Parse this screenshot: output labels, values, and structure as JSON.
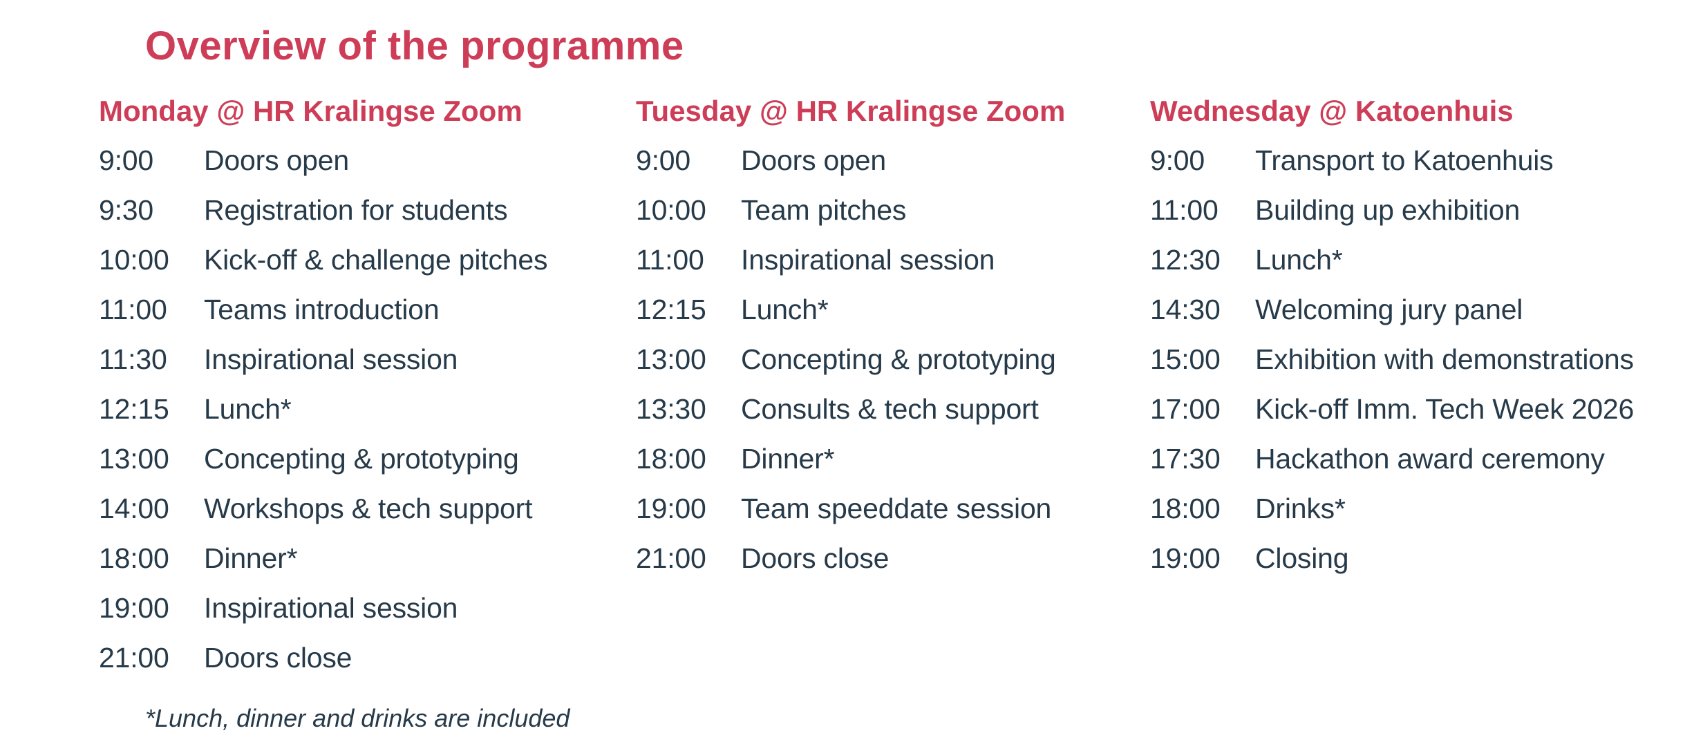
{
  "page": {
    "title": "Overview of the programme",
    "footnote": "*Lunch, dinner and drinks are included",
    "accent_color": "#ce3d57",
    "text_color": "#263a49",
    "background_color": "#ffffff"
  },
  "columns": [
    {
      "id": "monday",
      "header": "Monday @ HR Kralingse Zoom",
      "rows": [
        {
          "time": "9:00",
          "activity": "Doors open"
        },
        {
          "time": "9:30",
          "activity": "Registration for students"
        },
        {
          "time": "10:00",
          "activity": "Kick-off & challenge pitches"
        },
        {
          "time": "11:00",
          "activity": "Teams introduction"
        },
        {
          "time": "11:30",
          "activity": "Inspirational session"
        },
        {
          "time": "12:15",
          "activity": "Lunch*"
        },
        {
          "time": "13:00",
          "activity": "Concepting & prototyping"
        },
        {
          "time": "14:00",
          "activity": "Workshops & tech support"
        },
        {
          "time": "18:00",
          "activity": "Dinner*"
        },
        {
          "time": "19:00",
          "activity": "Inspirational session"
        },
        {
          "time": "21:00",
          "activity": "Doors close"
        }
      ]
    },
    {
      "id": "tuesday",
      "header": "Tuesday @ HR Kralingse Zoom",
      "rows": [
        {
          "time": "9:00",
          "activity": "Doors open"
        },
        {
          "time": "10:00",
          "activity": "Team pitches"
        },
        {
          "time": "11:00",
          "activity": "Inspirational session"
        },
        {
          "time": "12:15",
          "activity": "Lunch*"
        },
        {
          "time": "13:00",
          "activity": "Concepting & prototyping"
        },
        {
          "time": "13:30",
          "activity": "Consults & tech support"
        },
        {
          "time": "18:00",
          "activity": "Dinner*"
        },
        {
          "time": "19:00",
          "activity": "Team speeddate session"
        },
        {
          "time": "21:00",
          "activity": "Doors close"
        }
      ]
    },
    {
      "id": "wednesday",
      "header": "Wednesday @ Katoenhuis",
      "rows": [
        {
          "time": "9:00",
          "activity": "Transport to Katoenhuis"
        },
        {
          "time": "11:00",
          "activity": "Building up exhibition"
        },
        {
          "time": "12:30",
          "activity": "Lunch*"
        },
        {
          "time": "14:30",
          "activity": "Welcoming jury panel"
        },
        {
          "time": "15:00",
          "activity": "Exhibition with demonstrations"
        },
        {
          "time": "17:00",
          "activity": "Kick-off Imm. Tech Week 2026"
        },
        {
          "time": "17:30",
          "activity": "Hackathon award ceremony"
        },
        {
          "time": "18:00",
          "activity": "Drinks*"
        },
        {
          "time": "19:00",
          "activity": "Closing"
        }
      ]
    }
  ]
}
